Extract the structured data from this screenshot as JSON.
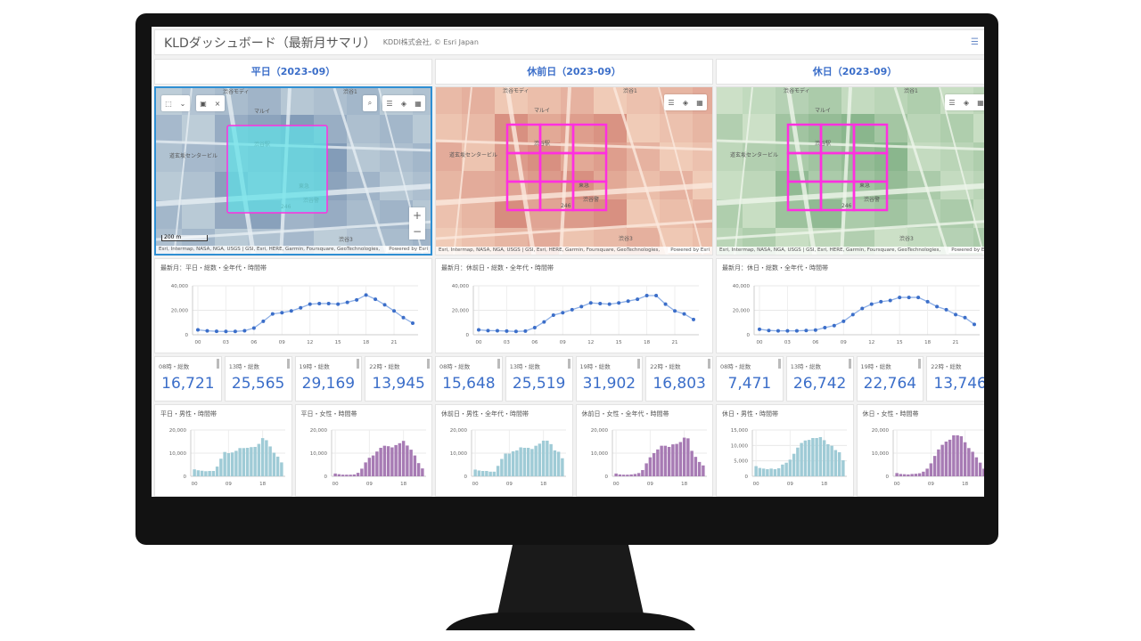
{
  "header": {
    "title": "KLDダッシュボード（最新月サマリ）",
    "subtitle": "KDDI株式会社, © Esri Japan",
    "menu_icon": "hamburger-icon"
  },
  "colors": {
    "accent": "#3b6ec9",
    "line": "#3b6ec9",
    "male_bar": "#9fcbd6",
    "female_bar": "#a77bb4",
    "selection": "#ff2fe0"
  },
  "map_common": {
    "attribution": "Esri, Intermap, NASA, NGA, USGS | GSI, Esri, HERE, Garmin, Foursquare, GeoTechnologies,",
    "powered": "Powered by Esri",
    "scale": "200 m",
    "labels": [
      "渋谷モディ",
      "渋谷1",
      "マルイ",
      "渋谷駅",
      "東急",
      "渋谷3",
      "渋谷警",
      "道玄坂センタービル",
      "246"
    ]
  },
  "columns": [
    {
      "tab": "平日（2023-09）",
      "map_theme": "blue",
      "map_selected": true,
      "line_title": "最新月：平日・総数・全年代・時間帯",
      "kpis": [
        {
          "label": "08時・総数",
          "value": "16,721"
        },
        {
          "label": "13時・総数",
          "value": "25,565"
        },
        {
          "label": "19時・総数",
          "value": "29,169"
        },
        {
          "label": "22時・総数",
          "value": "13,945"
        }
      ],
      "male_title": "平日・男性・時間帯",
      "female_title": "平日・女性・時間帯"
    },
    {
      "tab": "休前日（2023-09）",
      "map_theme": "red",
      "map_selected": false,
      "line_title": "最新月：休前日・総数・全年代・時間帯",
      "kpis": [
        {
          "label": "08時・総数",
          "value": "15,648"
        },
        {
          "label": "13時・総数",
          "value": "25,519"
        },
        {
          "label": "19時・総数",
          "value": "31,902"
        },
        {
          "label": "22時・総数",
          "value": "16,803"
        }
      ],
      "male_title": "休前日・男性・全年代・時間帯",
      "female_title": "休前日・女性・全年代・時間帯"
    },
    {
      "tab": "休日（2023-09）",
      "map_theme": "green",
      "map_selected": false,
      "line_title": "最新月：休日・総数・全年代・時間帯",
      "kpis": [
        {
          "label": "08時・総数",
          "value": "7,471"
        },
        {
          "label": "13時・総数",
          "value": "26,742"
        },
        {
          "label": "19時・総数",
          "value": "22,764"
        },
        {
          "label": "22時・総数",
          "value": "13,746"
        }
      ],
      "male_title": "休日・男性・時間帯",
      "female_title": "休日・女性・時間帯"
    }
  ],
  "chart_data": [
    {
      "type": "line",
      "title": "最新月：平日・総数・全年代・時間帯",
      "x_ticks": [
        "00",
        "03",
        "06",
        "09",
        "12",
        "15",
        "18",
        "21"
      ],
      "ylim": [
        0,
        40000
      ],
      "y_ticks": [
        "0",
        "20,000",
        "40,000"
      ],
      "grid": true,
      "values": [
        4000,
        3200,
        2800,
        2700,
        2700,
        3300,
        5500,
        11000,
        17000,
        18000,
        19500,
        22000,
        25000,
        25500,
        25500,
        25000,
        26500,
        28500,
        32500,
        29000,
        24500,
        19500,
        14000,
        9500
      ]
    },
    {
      "type": "line",
      "title": "最新月：休前日・総数・全年代・時間帯",
      "x_ticks": [
        "00",
        "03",
        "06",
        "09",
        "12",
        "15",
        "18",
        "21"
      ],
      "ylim": [
        0,
        40000
      ],
      "y_ticks": [
        "0",
        "20,000",
        "40,000"
      ],
      "grid": true,
      "values": [
        4000,
        3400,
        3300,
        3000,
        2700,
        3000,
        5800,
        10500,
        16000,
        18000,
        20500,
        23000,
        26000,
        25500,
        25000,
        26000,
        27500,
        29000,
        32000,
        32000,
        25000,
        19500,
        17000,
        12500
      ]
    },
    {
      "type": "line",
      "title": "最新月：休日・総数・全年代・時間帯",
      "x_ticks": [
        "00",
        "03",
        "06",
        "09",
        "12",
        "15",
        "18",
        "21"
      ],
      "ylim": [
        0,
        40000
      ],
      "y_ticks": [
        "0",
        "20,000",
        "40,000"
      ],
      "grid": true,
      "values": [
        4500,
        3500,
        3200,
        3200,
        3200,
        3500,
        3800,
        5800,
        7500,
        11000,
        16500,
        21500,
        25000,
        27000,
        28000,
        30500,
        30500,
        30500,
        27000,
        23000,
        20500,
        16500,
        14000,
        8500
      ]
    },
    {
      "type": "bar",
      "title": "平日・男性・時間帯",
      "x_ticks": [
        "00",
        "09",
        "18"
      ],
      "ylim": [
        0,
        20000
      ],
      "y_ticks": [
        "0",
        "10,000",
        "20,000"
      ],
      "values": [
        3000,
        2600,
        2400,
        2200,
        2300,
        2300,
        4200,
        7600,
        10500,
        10000,
        10300,
        11000,
        12200,
        12200,
        12300,
        12600,
        12700,
        14000,
        16500,
        15600,
        12900,
        10200,
        8500,
        6000
      ]
    },
    {
      "type": "bar",
      "title": "平日・女性・時間帯",
      "x_ticks": [
        "00",
        "09",
        "18"
      ],
      "ylim": [
        0,
        20000
      ],
      "y_ticks": [
        "0",
        "10,000",
        "20,000"
      ],
      "values": [
        1200,
        900,
        700,
        700,
        700,
        800,
        1500,
        3300,
        6000,
        8000,
        9000,
        10700,
        12300,
        13200,
        13000,
        12500,
        13500,
        14300,
        15300,
        13300,
        11500,
        9000,
        5700,
        3400
      ]
    },
    {
      "type": "bar",
      "title": "休前日・男性・全年代・時間帯",
      "x_ticks": [
        "00",
        "09",
        "18"
      ],
      "ylim": [
        0,
        20000
      ],
      "y_ticks": [
        "0",
        "10,000",
        "20,000"
      ],
      "values": [
        2900,
        2500,
        2300,
        2300,
        2000,
        2000,
        4500,
        7500,
        9800,
        9800,
        10800,
        11200,
        12500,
        12300,
        12300,
        11800,
        13200,
        14100,
        15400,
        15400,
        13900,
        11200,
        10600,
        7800
      ]
    },
    {
      "type": "bar",
      "title": "休前日・女性・全年代・時間帯",
      "x_ticks": [
        "00",
        "09",
        "18"
      ],
      "ylim": [
        0,
        20000
      ],
      "y_ticks": [
        "0",
        "10,000",
        "20,000"
      ],
      "values": [
        1200,
        800,
        700,
        700,
        800,
        1000,
        1400,
        2700,
        5600,
        8200,
        10000,
        11600,
        13200,
        13200,
        12700,
        13800,
        14000,
        14800,
        16700,
        16400,
        11000,
        8400,
        6200,
        4700
      ]
    },
    {
      "type": "bar",
      "title": "休日・男性・時間帯",
      "x_ticks": [
        "00",
        "09",
        "18"
      ],
      "ylim": [
        0,
        15000
      ],
      "y_ticks": [
        "0",
        "5,000",
        "10,000",
        "15,000"
      ],
      "values": [
        3300,
        2700,
        2500,
        2300,
        2500,
        2300,
        2600,
        3800,
        4400,
        5400,
        7300,
        9300,
        10800,
        11600,
        11800,
        12400,
        12400,
        12700,
        11700,
        10400,
        9900,
        8500,
        7800,
        5200
      ]
    },
    {
      "type": "bar",
      "title": "休日・女性・時間帯",
      "x_ticks": [
        "00",
        "09",
        "18"
      ],
      "ylim": [
        0,
        20000
      ],
      "y_ticks": [
        "0",
        "10,000",
        "20,000"
      ],
      "values": [
        1400,
        1000,
        900,
        800,
        1000,
        1100,
        1300,
        2000,
        3300,
        5600,
        8800,
        11600,
        13600,
        15000,
        15800,
        17700,
        17700,
        17300,
        14700,
        12200,
        10600,
        8200,
        5900,
        3300
      ]
    }
  ]
}
